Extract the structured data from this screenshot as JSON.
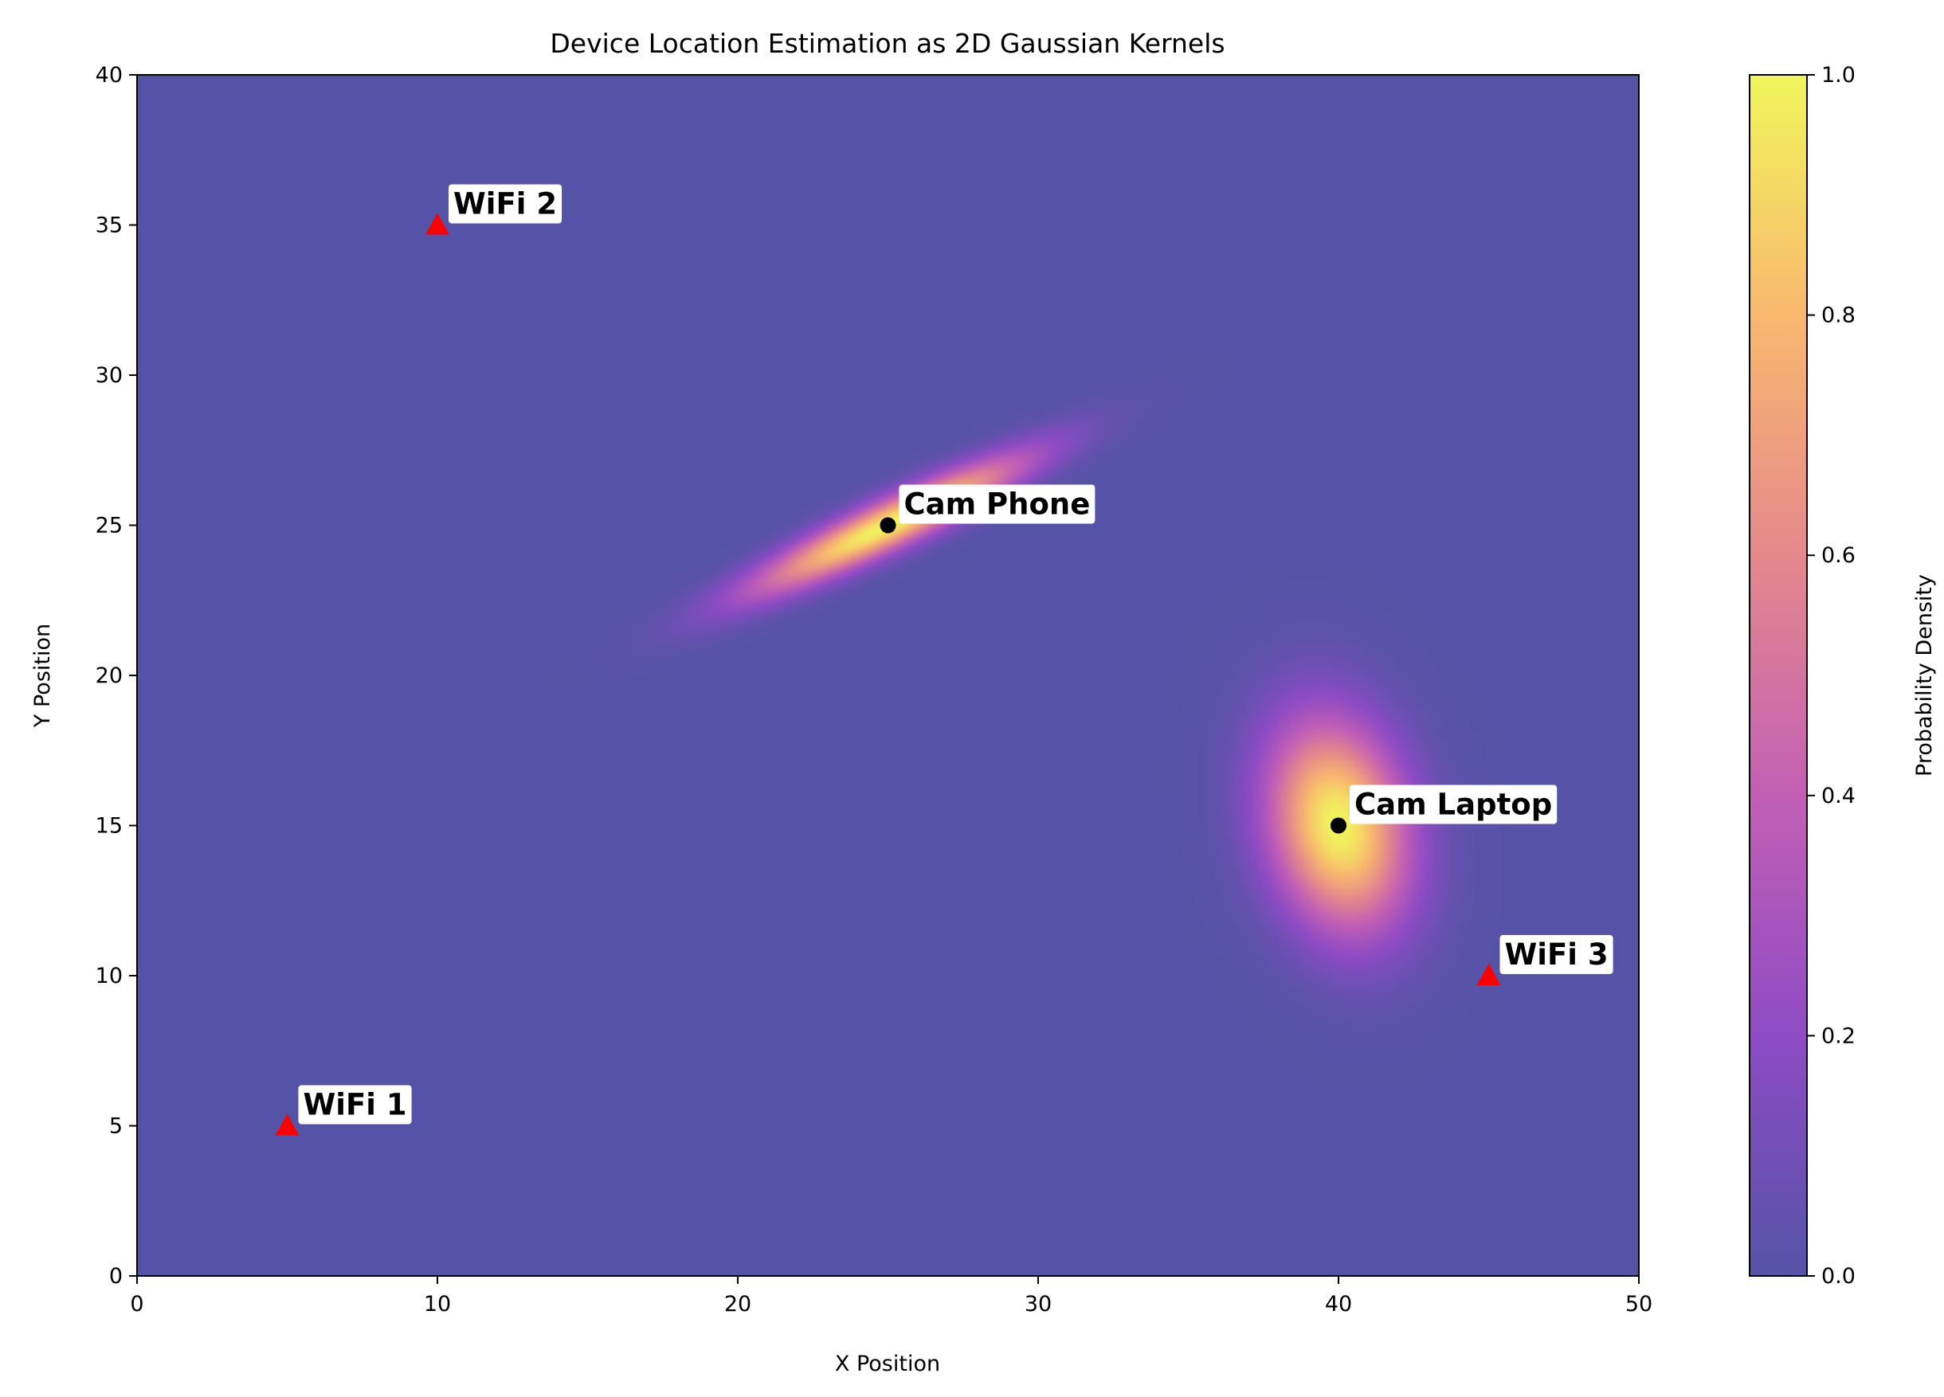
{
  "chart_data": {
    "type": "heatmap",
    "title": "Device Location Estimation as 2D Gaussian Kernels",
    "xlabel": "X Position",
    "ylabel": "Y Position",
    "xlim": [
      0,
      50
    ],
    "ylim": [
      0,
      40
    ],
    "xticks": [
      0,
      10,
      20,
      30,
      40,
      50
    ],
    "yticks": [
      0,
      5,
      10,
      15,
      20,
      25,
      30,
      35,
      40
    ],
    "grid": false,
    "colormap": "plasma",
    "colorbar": {
      "label": "Probability Density",
      "range": [
        0.0,
        1.0
      ],
      "ticks": [
        "0.0",
        "0.2",
        "0.4",
        "0.6",
        "0.8",
        "1.0"
      ]
    },
    "kernels": [
      {
        "center": [
          25,
          25
        ],
        "covariance": [
          [
            10.0,
            4.6
          ],
          [
            4.6,
            2.5
          ]
        ]
      },
      {
        "center": [
          40,
          15
        ],
        "covariance": [
          [
            2.7,
            -0.8
          ],
          [
            -0.8,
            6.0
          ]
        ]
      }
    ],
    "points": [
      {
        "label": "WiFi 1",
        "x": 5,
        "y": 5,
        "marker": "triangle",
        "color": "#ff0000"
      },
      {
        "label": "WiFi 2",
        "x": 10,
        "y": 35,
        "marker": "triangle",
        "color": "#ff0000"
      },
      {
        "label": "WiFi 3",
        "x": 45,
        "y": 10,
        "marker": "triangle",
        "color": "#ff0000"
      },
      {
        "label": "Cam Phone",
        "x": 25,
        "y": 25,
        "marker": "circle",
        "color": "#000000"
      },
      {
        "label": "Cam Laptop",
        "x": 40,
        "y": 15,
        "marker": "circle",
        "color": "#000000"
      }
    ]
  }
}
